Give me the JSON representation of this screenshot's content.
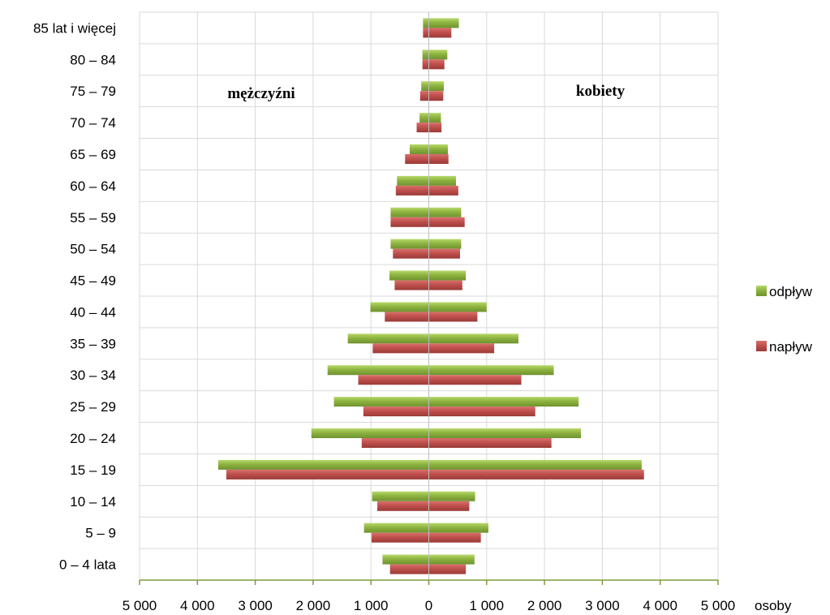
{
  "chart_data": {
    "type": "bar",
    "orientation": "horizontal",
    "subtype": "population pyramid",
    "categories": [
      "0 – 4 lata",
      "5 – 9",
      "10 – 14",
      "15 – 19",
      "20 – 24",
      "25 – 29",
      "30 – 34",
      "35 – 39",
      "40 – 44",
      "45 – 49",
      "50 – 54",
      "55 – 59",
      "60 – 64",
      "65 – 69",
      "70 – 74",
      "75 – 79",
      "80 – 84",
      "85 lat i więcej"
    ],
    "series": [
      {
        "name": "odpływ",
        "color": "#8DB33F",
        "men": [
          800,
          1120,
          980,
          3640,
          2030,
          1640,
          1750,
          1400,
          1010,
          680,
          660,
          660,
          550,
          330,
          160,
          130,
          110,
          100
        ],
        "women": [
          790,
          1030,
          800,
          3680,
          2630,
          2590,
          2160,
          1550,
          1000,
          640,
          560,
          560,
          470,
          330,
          210,
          260,
          320,
          520
        ]
      },
      {
        "name": "napływ",
        "color": "#C0504D",
        "men": [
          670,
          990,
          890,
          3500,
          1160,
          1130,
          1220,
          970,
          760,
          590,
          620,
          660,
          570,
          410,
          210,
          150,
          110,
          100
        ],
        "women": [
          640,
          900,
          700,
          3720,
          2120,
          1840,
          1600,
          1130,
          840,
          580,
          540,
          620,
          510,
          340,
          220,
          250,
          270,
          390
        ]
      }
    ],
    "x_ticks": [
      "5 000",
      "4 000",
      "3 000",
      "2 000",
      "1 000",
      "0",
      "1 000",
      "2 000",
      "3 000",
      "4 000",
      "5 000"
    ],
    "xlim": [
      -5000,
      5000
    ],
    "xlabel": "osoby",
    "annotations": {
      "left": "mężczyźni",
      "right": "kobiety"
    },
    "grid": true,
    "legend_position": "right"
  }
}
